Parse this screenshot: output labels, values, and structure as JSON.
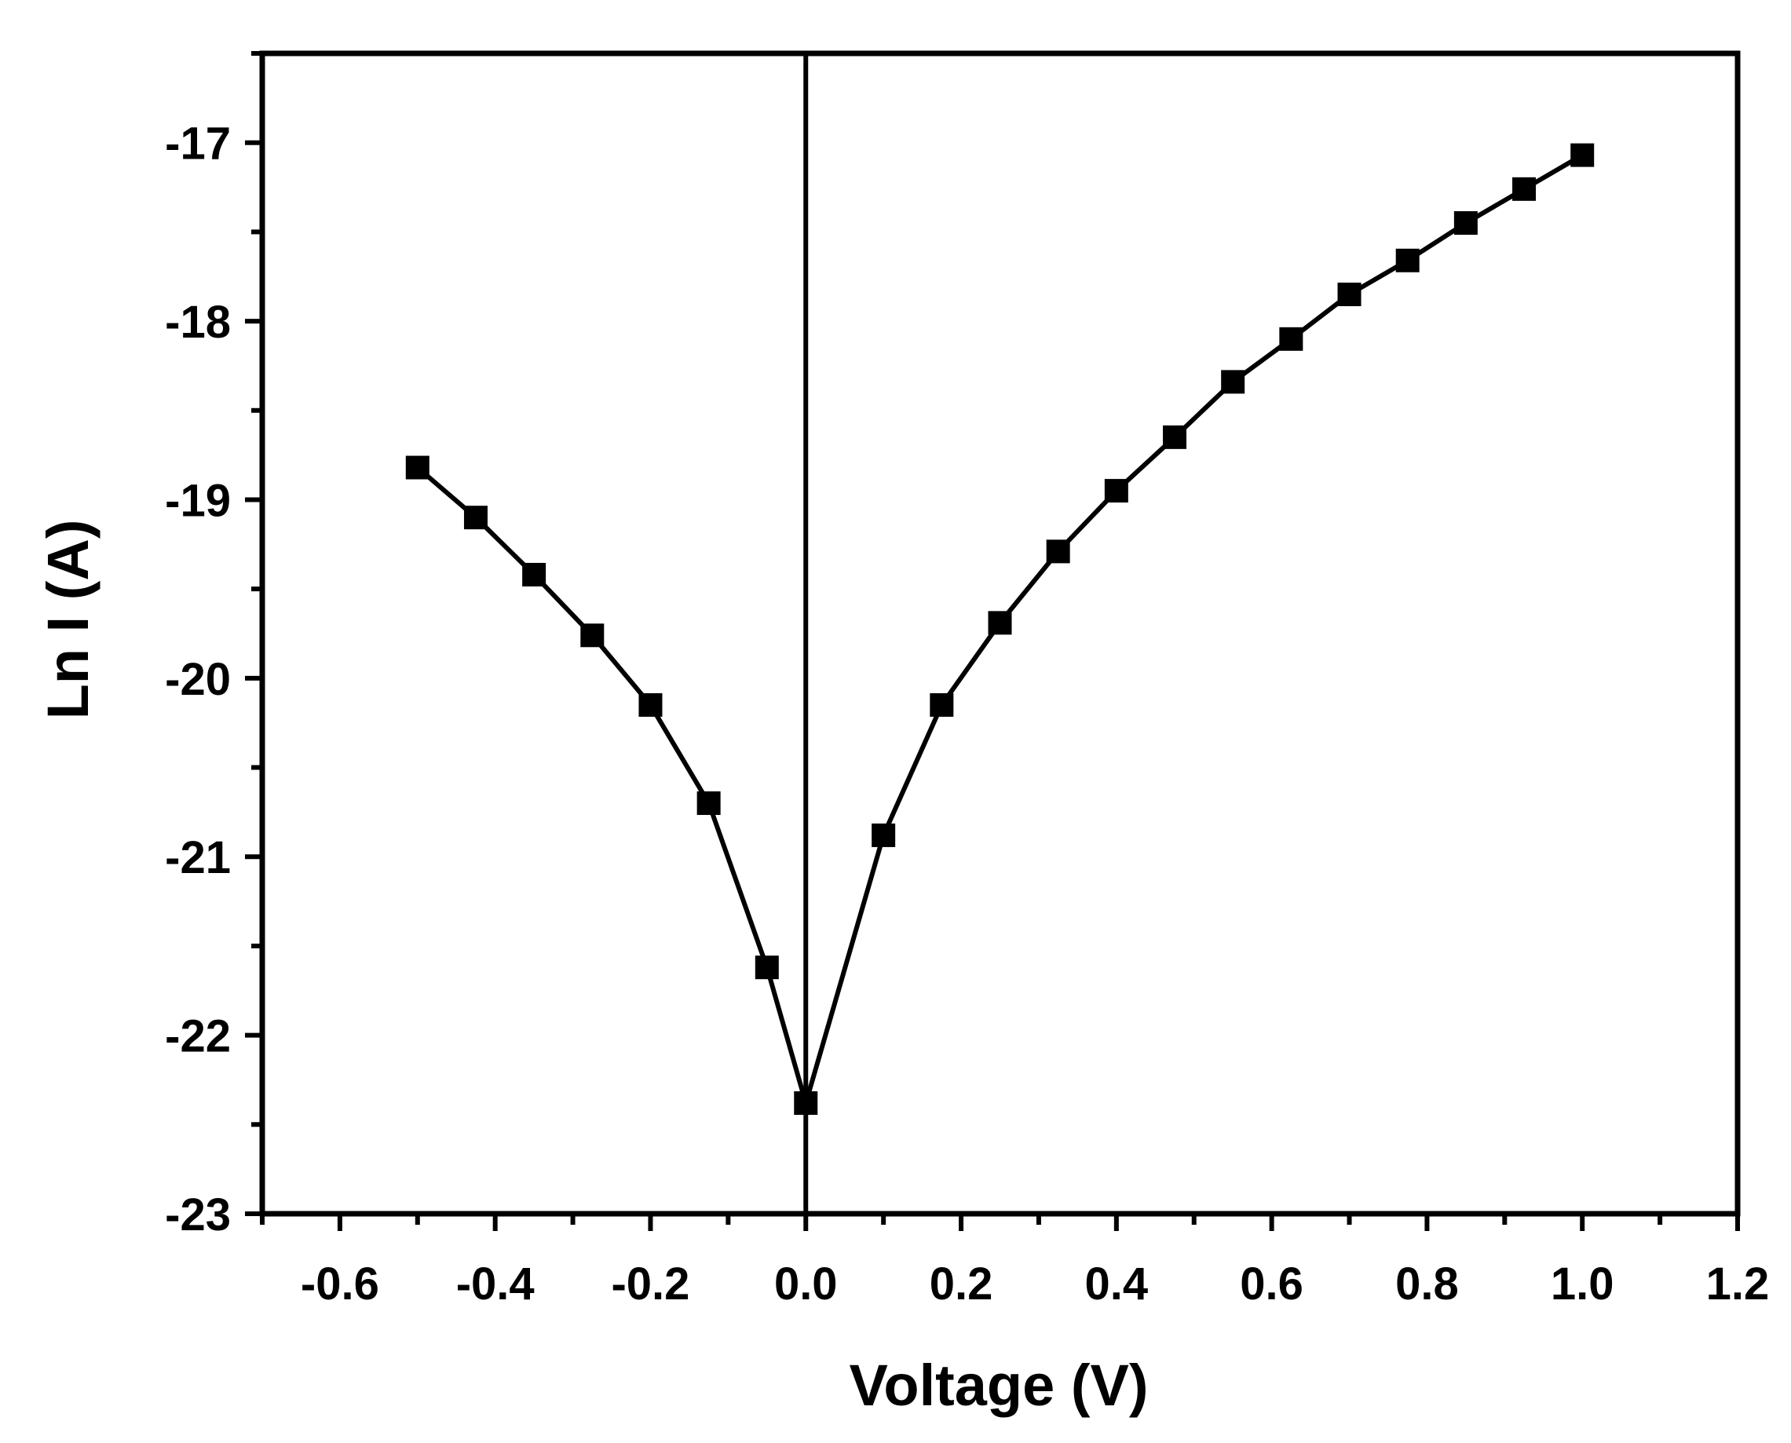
{
  "chart_data": {
    "type": "line",
    "xlabel": "Voltage (V)",
    "ylabel": "Ln I (A)",
    "xlim": [
      -0.7,
      1.2
    ],
    "ylim": [
      -23,
      -16.5
    ],
    "x_ticks": [
      -0.6,
      -0.4,
      -0.2,
      0.0,
      0.2,
      0.4,
      0.6,
      0.8,
      1.0,
      1.2
    ],
    "x_tick_labels": [
      "-0.6",
      "-0.4",
      "-0.2",
      "0.0",
      "0.2",
      "0.4",
      "0.6",
      "0.8",
      "1.0",
      "1.2"
    ],
    "x_minor_ticks": [
      -0.7,
      -0.5,
      -0.3,
      -0.1,
      0.1,
      0.3,
      0.5,
      0.7,
      0.9,
      1.1
    ],
    "y_ticks": [
      -23,
      -22,
      -21,
      -20,
      -19,
      -18,
      -17
    ],
    "y_tick_labels": [
      "-23",
      "-22",
      "-21",
      "-20",
      "-19",
      "-18",
      "-17"
    ],
    "y_minor_ticks": [
      -22.5,
      -21.5,
      -20.5,
      -19.5,
      -18.5,
      -17.5,
      -16.5
    ],
    "reference_line": {
      "x": 0.0
    },
    "grid": false,
    "marker": "square",
    "color": "#000000",
    "series": [
      {
        "points": [
          {
            "x": -0.5,
            "y": -18.82
          },
          {
            "x": -0.425,
            "y": -19.1
          },
          {
            "x": -0.35,
            "y": -19.42
          },
          {
            "x": -0.275,
            "y": -19.76
          },
          {
            "x": -0.2,
            "y": -20.15
          },
          {
            "x": -0.125,
            "y": -20.7
          },
          {
            "x": -0.05,
            "y": -21.62
          },
          {
            "x": 0.0,
            "y": -22.38
          },
          {
            "x": 0.1,
            "y": -20.88
          },
          {
            "x": 0.175,
            "y": -20.15
          },
          {
            "x": 0.25,
            "y": -19.69
          },
          {
            "x": 0.325,
            "y": -19.29
          },
          {
            "x": 0.4,
            "y": -18.95
          },
          {
            "x": 0.475,
            "y": -18.65
          },
          {
            "x": 0.55,
            "y": -18.34
          },
          {
            "x": 0.625,
            "y": -18.1
          },
          {
            "x": 0.7,
            "y": -17.85
          },
          {
            "x": 0.775,
            "y": -17.66
          },
          {
            "x": 0.85,
            "y": -17.45
          },
          {
            "x": 0.925,
            "y": -17.26
          },
          {
            "x": 1.0,
            "y": -17.07
          }
        ]
      }
    ]
  }
}
